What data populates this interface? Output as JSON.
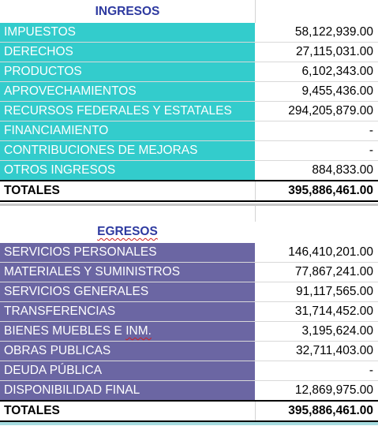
{
  "ingresos": {
    "title": "INGRESOS",
    "rows": [
      {
        "label": "IMPUESTOS",
        "value": "58,122,939.00"
      },
      {
        "label": "DERECHOS",
        "value": "27,115,031.00"
      },
      {
        "label": "PRODUCTOS",
        "value": "6,102,343.00"
      },
      {
        "label": "APROVECHAMIENTOS",
        "value": "9,455,436.00"
      },
      {
        "label": "RECURSOS FEDERALES Y ESTATALES",
        "value": "294,205,879.00"
      },
      {
        "label": "FINANCIAMIENTO",
        "value": "-"
      },
      {
        "label": "CONTRIBUCIONES DE MEJORAS",
        "value": "-"
      },
      {
        "label": "OTROS INGRESOS",
        "value": "884,833.00"
      }
    ],
    "total_label": "TOTALES",
    "total_value": "395,886,461.00"
  },
  "egresos": {
    "title": "EGRESOS",
    "rows": [
      {
        "label": "SERVICIOS PERSONALES",
        "value": "146,410,201.00"
      },
      {
        "label": "MATERIALES Y SUMINISTROS",
        "value": "77,867,241.00"
      },
      {
        "label": "SERVICIOS GENERALES",
        "value": "91,117,565.00"
      },
      {
        "label": "TRANSFERENCIAS",
        "value": "31,714,452.00"
      },
      {
        "label": "BIENES MUEBLES E ",
        "label_flagged": "INM.",
        "value": "3,195,624.00"
      },
      {
        "label": "OBRAS PUBLICAS",
        "value": "32,711,403.00"
      },
      {
        "label": "DEUDA PÚBLICA",
        "value": "-"
      },
      {
        "label": "DISPONIBILIDAD FINAL",
        "value": "12,869,975.00"
      }
    ],
    "total_label": "TOTALES",
    "total_value": "395,886,461.00"
  },
  "colors": {
    "ingresos_fill": "#33cccc",
    "egresos_fill": "#6b66a3",
    "title_text": "#2e3aa0"
  }
}
